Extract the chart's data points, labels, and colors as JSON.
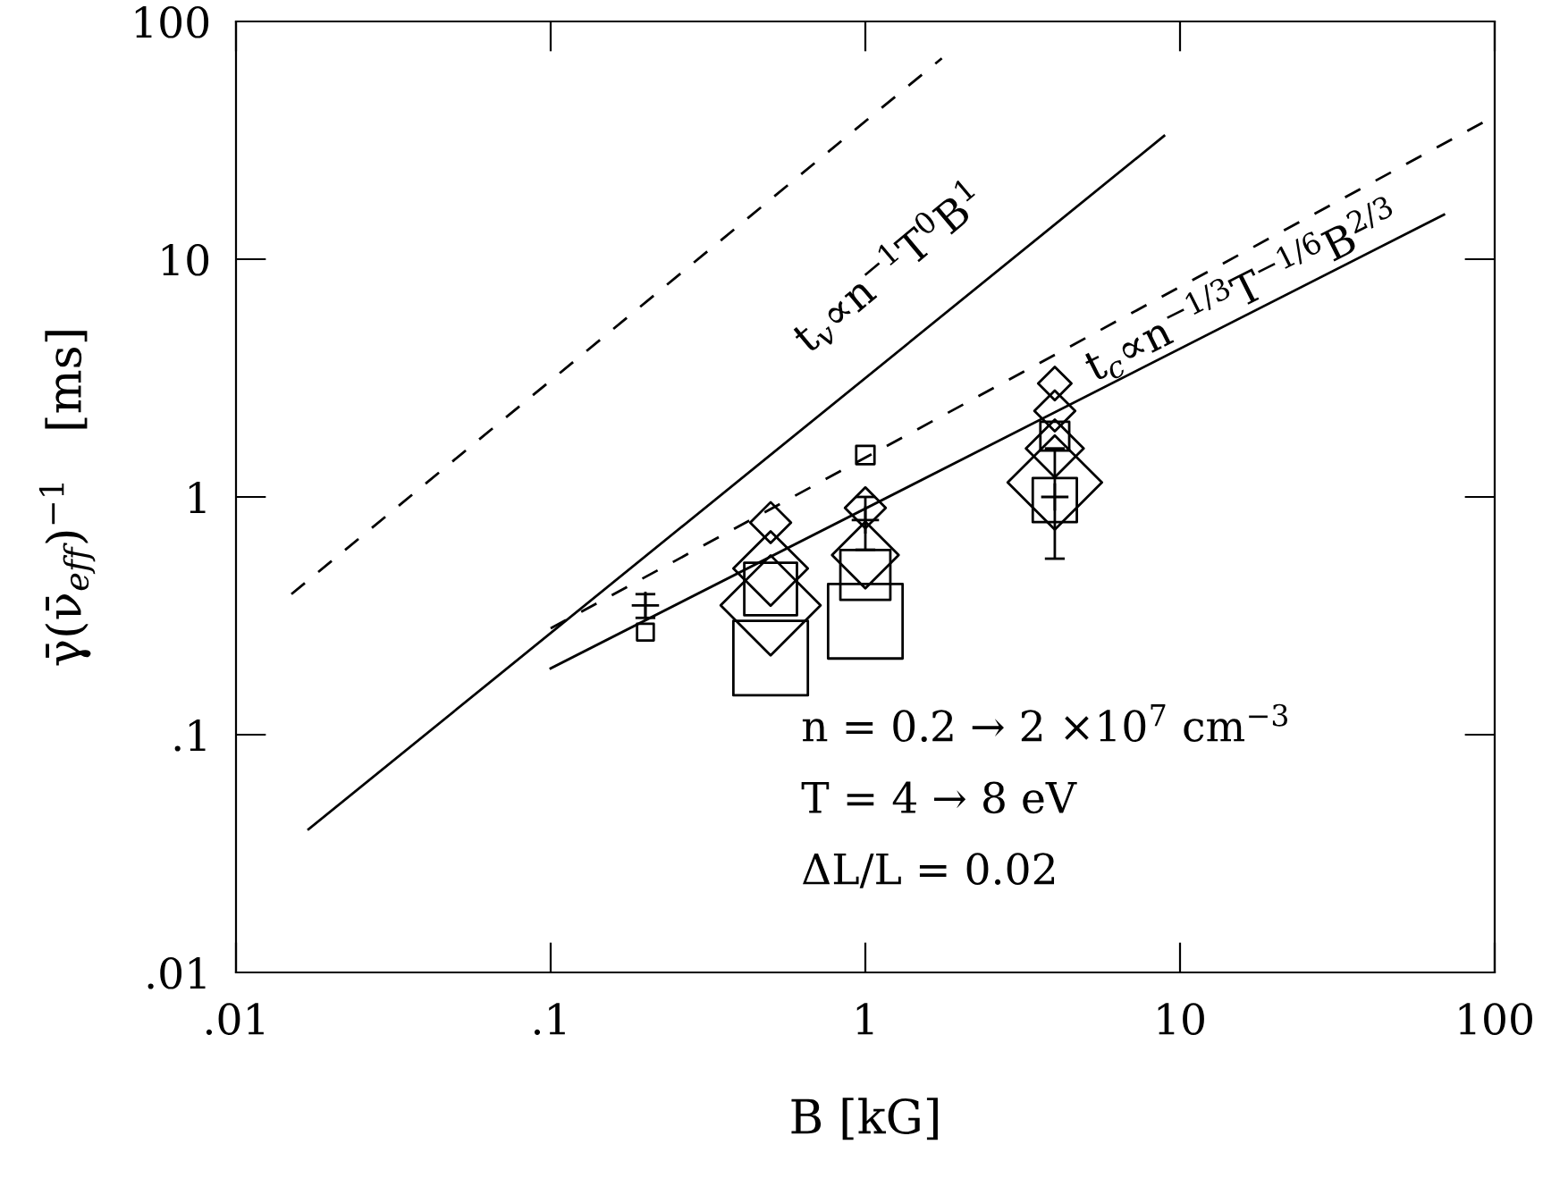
{
  "chart_data": {
    "type": "scatter",
    "xlabel": "B [kG]",
    "ylabel": "γ̄(ν̄$_{eff}$)$^{−1}$   [ms]",
    "log": "xy",
    "xlim": [
      0.01,
      100
    ],
    "ylim": [
      0.01,
      100
    ],
    "xticks": [
      {
        "value": 0.01,
        "label": ".01"
      },
      {
        "value": 0.1,
        "label": ".1"
      },
      1,
      10,
      100
    ],
    "yticks": [
      {
        "value": 0.01,
        "label": ".01"
      },
      {
        "value": 0.1,
        "label": ".1"
      },
      1,
      10,
      100
    ],
    "grid": false,
    "legend": false,
    "series": [
      {
        "type": "line",
        "color": "#000000",
        "line_style": "dashed",
        "x": [
          0.015,
          1.75
        ],
        "values": [
          0.39,
          70
        ]
      },
      {
        "type": "line",
        "color": "#000000",
        "line_style": "solid",
        "x": [
          0.017,
          8.9
        ],
        "values": [
          0.04,
          33
        ]
      },
      {
        "type": "line",
        "color": "#000000",
        "line_style": "dashed",
        "x": [
          0.1,
          100
        ],
        "values": [
          0.28,
          40
        ]
      },
      {
        "type": "line",
        "color": "#000000",
        "line_style": "solid",
        "x": [
          0.1,
          69
        ],
        "values": [
          0.19,
          15.4
        ]
      },
      {
        "type": "bubble",
        "color": "#000000",
        "marker": "square",
        "x": [
          0.2,
          0.5,
          0.5,
          1,
          1,
          1,
          4,
          4
        ],
        "values": [
          0.27,
          0.21,
          0.41,
          0.3,
          0.47,
          1.5,
          0.97,
          1.8
        ],
        "sizes": [
          0.05,
          1,
          0.5,
          1,
          0.45,
          0.06,
          0.35,
          0.15
        ]
      },
      {
        "type": "bubble",
        "color": "#000000",
        "marker": "diamond",
        "x": [
          0.5,
          0.5,
          0.5,
          1,
          1,
          4,
          4,
          4,
          4
        ],
        "values": [
          0.35,
          0.5,
          0.78,
          0.57,
          0.9,
          1.15,
          1.6,
          2.3,
          3.0
        ],
        "sizes": [
          0.9,
          0.5,
          0.15,
          0.4,
          0.15,
          0.8,
          0.3,
          0.15,
          0.1
        ]
      },
      {
        "color": "#000000",
        "marker": "cross",
        "x": [
          0.2,
          1,
          4
        ],
        "values": [
          0.35,
          0.8,
          1.0
        ],
        "errors": [
          [
            0.31,
            0.39
          ],
          [
            0.6,
            1.0
          ],
          [
            0.55,
            1.6
          ]
        ]
      }
    ],
    "annotations": [
      "t$_{v}$∝n$^{−1}$T$^{0}$B$^{1}$",
      "t$_{c}$∝n$^{−1/3}$T$^{−1/6}$B$^{2/3}$",
      "n = 0.2 → 2 ×10$^{7}$ cm$^{−3}$",
      "T = 4 → 8 eV",
      "ΔL/L = 0.02"
    ]
  }
}
